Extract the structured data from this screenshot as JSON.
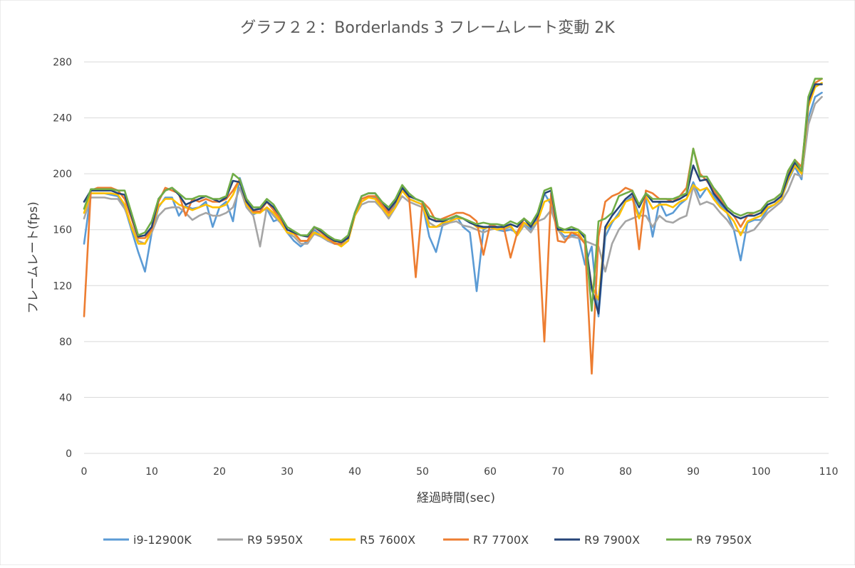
{
  "chart_data": {
    "type": "line",
    "title": "グラフ２２：Borderlands 3 フレームレート変動 2K",
    "xlabel": "経過時間(sec)",
    "ylabel": "フレームレート(fps)",
    "xlim": [
      0,
      110
    ],
    "ylim": [
      0,
      280
    ],
    "x_ticks": [
      0,
      10,
      20,
      30,
      40,
      50,
      60,
      70,
      80,
      90,
      100,
      110
    ],
    "y_ticks": [
      0,
      40,
      80,
      120,
      160,
      200,
      240,
      280
    ],
    "grid": "horizontal",
    "legend_position": "bottom",
    "x": [
      0,
      1,
      2,
      3,
      4,
      5,
      6,
      7,
      8,
      9,
      10,
      11,
      12,
      13,
      14,
      15,
      16,
      17,
      18,
      19,
      20,
      21,
      22,
      23,
      24,
      25,
      26,
      27,
      28,
      29,
      30,
      31,
      32,
      33,
      34,
      35,
      36,
      37,
      38,
      39,
      40,
      41,
      42,
      43,
      44,
      45,
      46,
      47,
      48,
      49,
      50,
      51,
      52,
      53,
      54,
      55,
      56,
      57,
      58,
      59,
      60,
      61,
      62,
      63,
      64,
      65,
      66,
      67,
      68,
      69,
      70,
      71,
      72,
      73,
      74,
      75,
      76,
      77,
      78,
      79,
      80,
      81,
      82,
      83,
      84,
      85,
      86,
      87,
      88,
      89,
      90,
      91,
      92,
      93,
      94,
      95,
      96,
      97,
      98,
      99,
      100,
      101,
      102,
      103,
      104,
      105,
      106,
      107,
      108,
      109
    ],
    "series": [
      {
        "name": "i9-12900K",
        "color": "#5b9bd5",
        "values": [
          150,
          186,
          186,
          186,
          185,
          184,
          176,
          160,
          144,
          130,
          158,
          176,
          183,
          183,
          170,
          177,
          175,
          176,
          180,
          162,
          176,
          180,
          166,
          197,
          182,
          171,
          173,
          175,
          166,
          168,
          158,
          152,
          148,
          152,
          160,
          156,
          152,
          150,
          149,
          152,
          170,
          180,
          183,
          183,
          176,
          170,
          178,
          188,
          182,
          180,
          178,
          155,
          144,
          164,
          166,
          170,
          162,
          158,
          116,
          160,
          163,
          160,
          159,
          160,
          158,
          165,
          160,
          168,
          186,
          178,
          160,
          155,
          156,
          156,
          135,
          148,
          98,
          155,
          165,
          172,
          180,
          184,
          170,
          182,
          155,
          180,
          170,
          172,
          178,
          182,
          194,
          183,
          190,
          184,
          178,
          172,
          160,
          138,
          165,
          167,
          167,
          175,
          178,
          182,
          195,
          205,
          196,
          240,
          255,
          258
        ]
      },
      {
        "name": "R9 5950X",
        "color": "#a5a5a5",
        "values": [
          168,
          183,
          183,
          183,
          182,
          182,
          175,
          163,
          152,
          150,
          158,
          170,
          175,
          176,
          176,
          172,
          167,
          170,
          172,
          170,
          170,
          172,
          176,
          190,
          176,
          170,
          148,
          176,
          170,
          165,
          158,
          155,
          150,
          150,
          157,
          155,
          152,
          150,
          150,
          152,
          170,
          178,
          180,
          180,
          175,
          168,
          176,
          184,
          180,
          178,
          176,
          165,
          162,
          163,
          165,
          166,
          163,
          162,
          160,
          158,
          160,
          161,
          160,
          162,
          156,
          163,
          158,
          166,
          168,
          174,
          160,
          153,
          155,
          154,
          152,
          150,
          148,
          130,
          150,
          160,
          166,
          168,
          170,
          170,
          162,
          170,
          166,
          165,
          168,
          170,
          191,
          178,
          180,
          178,
          172,
          167,
          160,
          158,
          158,
          160,
          166,
          172,
          176,
          180,
          188,
          200,
          198,
          235,
          250,
          255
        ]
      },
      {
        "name": "R5 7600X",
        "color": "#ffc000",
        "values": [
          172,
          186,
          186,
          186,
          186,
          185,
          178,
          162,
          150,
          150,
          160,
          177,
          182,
          182,
          178,
          176,
          174,
          176,
          178,
          176,
          176,
          178,
          185,
          196,
          178,
          172,
          172,
          176,
          172,
          166,
          158,
          157,
          152,
          152,
          158,
          156,
          153,
          151,
          148,
          152,
          170,
          180,
          183,
          182,
          176,
          170,
          176,
          188,
          182,
          180,
          178,
          162,
          162,
          165,
          166,
          168,
          168,
          166,
          162,
          161,
          162,
          160,
          161,
          163,
          156,
          165,
          162,
          166,
          180,
          182,
          160,
          158,
          158,
          158,
          150,
          120,
          110,
          160,
          166,
          170,
          180,
          182,
          168,
          184,
          175,
          178,
          178,
          176,
          180,
          182,
          192,
          188,
          190,
          182,
          176,
          172,
          166,
          156,
          166,
          168,
          170,
          176,
          178,
          182,
          196,
          206,
          200,
          248,
          262,
          265
        ]
      },
      {
        "name": "R7 7700X",
        "color": "#ed7d31",
        "values": [
          98,
          188,
          190,
          190,
          190,
          188,
          182,
          168,
          154,
          154,
          160,
          180,
          190,
          188,
          186,
          170,
          182,
          180,
          182,
          180,
          180,
          182,
          188,
          196,
          180,
          173,
          173,
          180,
          174,
          168,
          160,
          158,
          152,
          152,
          162,
          158,
          154,
          150,
          150,
          155,
          172,
          182,
          184,
          184,
          178,
          172,
          180,
          190,
          184,
          126,
          180,
          175,
          166,
          168,
          170,
          172,
          172,
          170,
          166,
          142,
          164,
          162,
          162,
          140,
          158,
          168,
          164,
          170,
          80,
          186,
          152,
          151,
          158,
          156,
          150,
          57,
          155,
          180,
          184,
          186,
          190,
          188,
          146,
          188,
          186,
          182,
          182,
          180,
          184,
          190,
          218,
          200,
          195,
          188,
          182,
          174,
          170,
          162,
          170,
          172,
          174,
          180,
          182,
          186,
          200,
          210,
          205,
          250,
          265,
          268
        ]
      },
      {
        "name": "R9 7900X",
        "color": "#264478",
        "values": [
          180,
          188,
          188,
          188,
          188,
          186,
          185,
          170,
          155,
          156,
          162,
          182,
          188,
          190,
          185,
          178,
          180,
          182,
          184,
          182,
          180,
          183,
          195,
          194,
          180,
          174,
          175,
          180,
          176,
          170,
          160,
          158,
          156,
          155,
          162,
          159,
          155,
          152,
          151,
          154,
          172,
          184,
          186,
          186,
          180,
          174,
          180,
          190,
          184,
          182,
          180,
          168,
          166,
          166,
          168,
          170,
          168,
          165,
          163,
          162,
          162,
          162,
          162,
          164,
          162,
          168,
          162,
          170,
          186,
          188,
          160,
          160,
          160,
          160,
          154,
          118,
          100,
          162,
          170,
          176,
          182,
          186,
          176,
          186,
          180,
          180,
          180,
          180,
          182,
          185,
          206,
          195,
          196,
          186,
          180,
          174,
          170,
          168,
          170,
          170,
          172,
          178,
          180,
          184,
          198,
          208,
          202,
          252,
          264,
          264
        ]
      },
      {
        "name": "R9 7950X",
        "color": "#70ad47",
        "values": [
          175,
          189,
          189,
          189,
          189,
          188,
          188,
          172,
          156,
          158,
          166,
          182,
          188,
          190,
          186,
          182,
          182,
          184,
          184,
          182,
          182,
          184,
          200,
          196,
          182,
          176,
          176,
          182,
          178,
          170,
          162,
          159,
          156,
          156,
          162,
          160,
          156,
          153,
          152,
          156,
          172,
          184,
          186,
          186,
          180,
          176,
          182,
          192,
          186,
          182,
          180,
          170,
          168,
          167,
          168,
          170,
          168,
          166,
          164,
          165,
          164,
          164,
          163,
          166,
          164,
          168,
          164,
          172,
          188,
          190,
          162,
          160,
          162,
          160,
          156,
          102,
          166,
          168,
          172,
          184,
          186,
          188,
          178,
          186,
          182,
          182,
          182,
          182,
          184,
          186,
          218,
          198,
          198,
          190,
          184,
          176,
          172,
          170,
          172,
          172,
          174,
          180,
          182,
          186,
          202,
          210,
          202,
          255,
          268,
          268
        ]
      }
    ]
  }
}
